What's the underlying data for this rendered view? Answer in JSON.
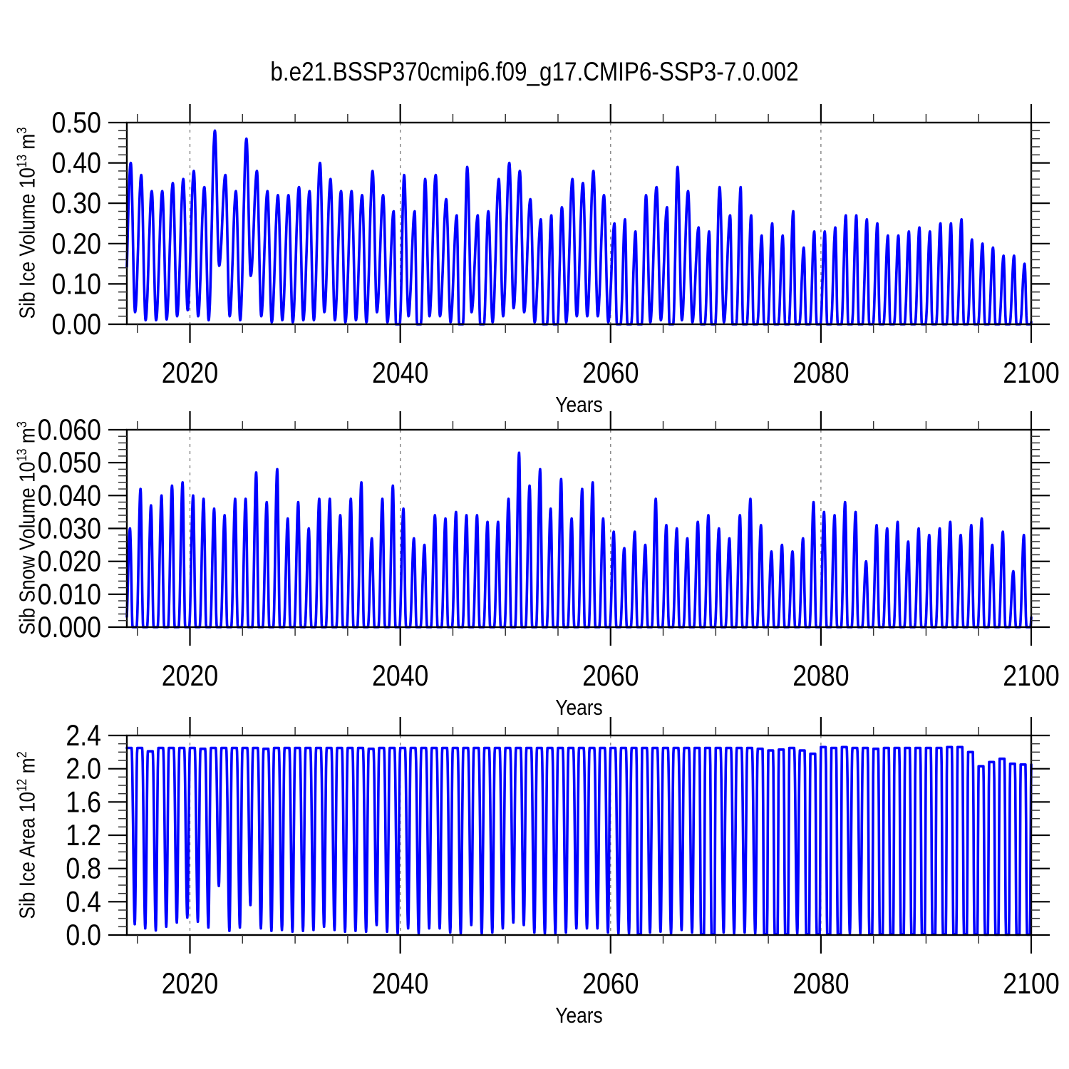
{
  "title": "b.e21.BSSP370cmip6.f09_g17.CMIP6-SSP3-7.0.002",
  "colors": {
    "line": "#0000ff",
    "axis": "#000000",
    "grid": "#7a7a7a",
    "background": "#ffffff"
  },
  "chart_data": [
    {
      "type": "line",
      "id": "sib-ice-volume",
      "xlabel": "Years",
      "ylabel": {
        "text": "Sib Ice Volume 10",
        "exp": "13",
        "unit": " m",
        "unit_exp": "3"
      },
      "xlim": [
        2014,
        2100
      ],
      "ylim": [
        0,
        0.5
      ],
      "x_major_ticks": [
        2020,
        2040,
        2060,
        2080,
        2100
      ],
      "x_tick_labels": [
        "2020",
        "2040",
        "2060",
        "2080",
        "2100"
      ],
      "x_minor_step": 5,
      "y_major_ticks": [
        0,
        0.1,
        0.2,
        0.3,
        0.4,
        0.5
      ],
      "y_tick_labels": [
        "0.00",
        "0.10",
        "0.20",
        "0.30",
        "0.40",
        "0.50"
      ],
      "y_minor_step": 0.02,
      "grid_x": [
        2020,
        2040,
        2060,
        2080
      ],
      "legend": null,
      "seasonal": {
        "note": "annual cycle: spring maximum (annual_max) and late-summer minimum (annual_min) per year",
        "year_start": 2014,
        "year_end": 2099,
        "peak_t": 0.37,
        "trough_t": 0.78,
        "flat_below": 0.004,
        "flat": [
          0.6,
          0.95
        ],
        "annual_max": [
          0.4,
          0.37,
          0.33,
          0.33,
          0.35,
          0.36,
          0.38,
          0.34,
          0.48,
          0.37,
          0.33,
          0.46,
          0.38,
          0.33,
          0.32,
          0.32,
          0.34,
          0.33,
          0.4,
          0.36,
          0.33,
          0.33,
          0.32,
          0.38,
          0.32,
          0.28,
          0.37,
          0.28,
          0.36,
          0.37,
          0.31,
          0.27,
          0.39,
          0.27,
          0.28,
          0.36,
          0.4,
          0.38,
          0.31,
          0.26,
          0.27,
          0.29,
          0.36,
          0.35,
          0.38,
          0.32,
          0.25,
          0.26,
          0.23,
          0.32,
          0.34,
          0.29,
          0.39,
          0.33,
          0.24,
          0.23,
          0.34,
          0.27,
          0.34,
          0.27,
          0.22,
          0.25,
          0.22,
          0.28,
          0.19,
          0.23,
          0.23,
          0.24,
          0.27,
          0.27,
          0.26,
          0.25,
          0.22,
          0.22,
          0.23,
          0.24,
          0.23,
          0.25,
          0.25,
          0.26,
          0.21,
          0.2,
          0.19,
          0.17,
          0.17,
          0.15
        ],
        "annual_min": [
          0.03,
          0.01,
          0.01,
          0.012,
          0.02,
          0.035,
          0.02,
          0.01,
          0.145,
          0.02,
          0.01,
          0.12,
          0.02,
          0.005,
          0.01,
          0.005,
          0.01,
          0.01,
          0.03,
          0.01,
          0.005,
          0.01,
          0.005,
          0.03,
          0.005,
          0,
          0.02,
          0,
          0.02,
          0.02,
          0.005,
          0,
          0.03,
          0,
          0.005,
          0.02,
          0.04,
          0.03,
          0.005,
          0,
          0,
          0.005,
          0.02,
          0.02,
          0.02,
          0.005,
          0,
          0,
          0,
          0.005,
          0.01,
          0,
          0.01,
          0.005,
          0,
          0,
          0.005,
          0,
          0,
          0,
          0,
          0,
          0,
          0,
          0,
          0,
          0,
          0,
          0,
          0,
          0,
          0,
          0,
          0,
          0,
          0,
          0,
          0,
          0,
          0,
          0,
          0,
          0,
          0,
          0,
          0
        ]
      }
    },
    {
      "type": "line",
      "id": "sib-snow-volume",
      "xlabel": "Years",
      "ylabel": {
        "text": "Sib Snow Volume 10",
        "exp": "13",
        "unit": " m",
        "unit_exp": "3"
      },
      "xlim": [
        2014,
        2100
      ],
      "ylim": [
        0,
        0.06
      ],
      "x_major_ticks": [
        2020,
        2040,
        2060,
        2080,
        2100
      ],
      "x_tick_labels": [
        "2020",
        "2040",
        "2060",
        "2080",
        "2100"
      ],
      "x_minor_step": 5,
      "y_major_ticks": [
        0,
        0.01,
        0.02,
        0.03,
        0.04,
        0.05,
        0.06
      ],
      "y_tick_labels": [
        "0.000",
        "0.010",
        "0.020",
        "0.030",
        "0.040",
        "0.050",
        "0.060"
      ],
      "y_minor_step": 0.002,
      "grid_x": [
        2020,
        2040,
        2060,
        2080
      ],
      "legend": null,
      "seasonal": {
        "note": "annual cycle: spring maximum (annual_max), snow-free (0) each summer",
        "year_start": 2014,
        "year_end": 2099,
        "peak_t": 0.3,
        "trough_t": 0.75,
        "flat_below": 0.002,
        "flat": [
          0.55,
          0.92
        ],
        "annual_max": [
          0.03,
          0.042,
          0.037,
          0.04,
          0.043,
          0.044,
          0.04,
          0.039,
          0.036,
          0.034,
          0.039,
          0.039,
          0.047,
          0.038,
          0.048,
          0.033,
          0.038,
          0.03,
          0.039,
          0.039,
          0.034,
          0.039,
          0.044,
          0.027,
          0.039,
          0.043,
          0.036,
          0.027,
          0.025,
          0.034,
          0.033,
          0.035,
          0.034,
          0.034,
          0.032,
          0.032,
          0.039,
          0.053,
          0.043,
          0.048,
          0.036,
          0.045,
          0.033,
          0.042,
          0.044,
          0.033,
          0.029,
          0.024,
          0.029,
          0.025,
          0.039,
          0.031,
          0.03,
          0.027,
          0.032,
          0.034,
          0.03,
          0.027,
          0.034,
          0.039,
          0.031,
          0.023,
          0.025,
          0.023,
          0.027,
          0.038,
          0.035,
          0.034,
          0.038,
          0.035,
          0.02,
          0.031,
          0.03,
          0.032,
          0.026,
          0.03,
          0.028,
          0.03,
          0.032,
          0.028,
          0.031,
          0.033,
          0.025,
          0.029,
          0.017,
          0.028
        ],
        "annual_min": [
          0,
          0,
          0,
          0,
          0,
          0,
          0,
          0,
          0,
          0,
          0,
          0,
          0,
          0,
          0,
          0,
          0,
          0,
          0,
          0,
          0,
          0,
          0,
          0,
          0,
          0,
          0,
          0,
          0,
          0,
          0,
          0,
          0,
          0,
          0,
          0,
          0,
          0,
          0,
          0,
          0,
          0,
          0,
          0,
          0,
          0,
          0,
          0,
          0,
          0,
          0,
          0,
          0,
          0,
          0,
          0,
          0,
          0,
          0,
          0,
          0,
          0,
          0,
          0,
          0,
          0,
          0,
          0,
          0,
          0,
          0,
          0,
          0,
          0,
          0,
          0,
          0,
          0,
          0,
          0,
          0,
          0,
          0,
          0,
          0,
          0
        ]
      }
    },
    {
      "type": "line",
      "id": "sib-ice-area",
      "xlabel": "Years",
      "ylabel": {
        "text": "Sib Ice Area 10",
        "exp": "12",
        "unit": " m",
        "unit_exp": "2"
      },
      "xlim": [
        2014,
        2100
      ],
      "ylim": [
        0,
        2.4
      ],
      "x_major_ticks": [
        2020,
        2040,
        2060,
        2080,
        2100
      ],
      "x_tick_labels": [
        "2020",
        "2040",
        "2060",
        "2080",
        "2100"
      ],
      "x_minor_step": 5,
      "y_major_ticks": [
        0,
        0.4,
        0.8,
        1.2,
        1.6,
        2.0,
        2.4
      ],
      "y_tick_labels": [
        "0.0",
        "0.4",
        "0.8",
        "1.2",
        "1.6",
        "2.0",
        "2.4"
      ],
      "y_minor_step": 0.1,
      "grid_x": [
        2020,
        2040,
        2060,
        2080
      ],
      "legend": null,
      "seasonal": {
        "note": "annual cycle: winter plateau (annual_max) and late-summer minimum (annual_min) per year",
        "year_start": 2014,
        "year_end": 2099,
        "plateau": [
          0.0,
          0.45
        ],
        "trough_t": 0.75,
        "flat_below": 0.015,
        "flat": [
          0.6,
          0.88
        ],
        "annual_max": [
          2.25,
          2.25,
          2.21,
          2.25,
          2.25,
          2.25,
          2.25,
          2.24,
          2.25,
          2.25,
          2.25,
          2.25,
          2.25,
          2.24,
          2.25,
          2.25,
          2.25,
          2.25,
          2.25,
          2.25,
          2.25,
          2.25,
          2.25,
          2.24,
          2.25,
          2.25,
          2.25,
          2.25,
          2.25,
          2.25,
          2.25,
          2.25,
          2.25,
          2.25,
          2.25,
          2.25,
          2.25,
          2.25,
          2.25,
          2.25,
          2.25,
          2.25,
          2.25,
          2.25,
          2.25,
          2.25,
          2.25,
          2.25,
          2.25,
          2.25,
          2.25,
          2.25,
          2.25,
          2.25,
          2.25,
          2.25,
          2.25,
          2.25,
          2.25,
          2.25,
          2.24,
          2.22,
          2.23,
          2.25,
          2.22,
          2.18,
          2.26,
          2.25,
          2.26,
          2.25,
          2.25,
          2.24,
          2.25,
          2.25,
          2.25,
          2.25,
          2.25,
          2.25,
          2.26,
          2.26,
          2.2,
          2.03,
          2.08,
          2.12,
          2.06,
          2.05
        ],
        "annual_min": [
          0.13,
          0.08,
          0.055,
          0.1,
          0.15,
          0.21,
          0.16,
          0.09,
          0.59,
          0.05,
          0.09,
          0.36,
          0.08,
          0.05,
          0.06,
          0.04,
          0.05,
          0.06,
          0.1,
          0.06,
          0.04,
          0.05,
          0.04,
          0.12,
          0.04,
          0.02,
          0.08,
          0.02,
          0.08,
          0.08,
          0.03,
          0.02,
          0.12,
          0.02,
          0.03,
          0.08,
          0.15,
          0.12,
          0.03,
          0.02,
          0.02,
          0.03,
          0.08,
          0.08,
          0.08,
          0.03,
          0.02,
          0.02,
          0.01,
          0.03,
          0.04,
          0.02,
          0.06,
          0.03,
          0.01,
          0.01,
          0.03,
          0.02,
          0.03,
          0.02,
          0.01,
          0.01,
          0.01,
          0.02,
          0.01,
          0.01,
          0.01,
          0.01,
          0.02,
          0.02,
          0.01,
          0.01,
          0.01,
          0.01,
          0.01,
          0.01,
          0.01,
          0.01,
          0.01,
          0.01,
          0.01,
          0.005,
          0.005,
          0.005,
          0.005,
          0.005
        ]
      }
    }
  ]
}
